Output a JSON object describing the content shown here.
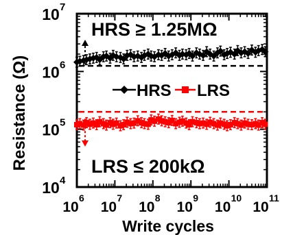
{
  "chart_data": {
    "type": "scatter",
    "title": "",
    "xlabel": "Write cycles",
    "ylabel": "Resistance (Ω)",
    "xscale": "log",
    "yscale": "log",
    "xlim": [
      1000000,
      100000000000
    ],
    "ylim": [
      10000,
      10000000
    ],
    "x_ticks": [
      {
        "base": "10",
        "exp": "6",
        "value": 1000000
      },
      {
        "base": "10",
        "exp": "7",
        "value": 10000000
      },
      {
        "base": "10",
        "exp": "8",
        "value": 100000000
      },
      {
        "base": "10",
        "exp": "9",
        "value": 1000000000
      },
      {
        "base": "10",
        "exp": "10",
        "value": 10000000000
      },
      {
        "base": "10",
        "exp": "11",
        "value": 100000000000
      }
    ],
    "y_ticks": [
      {
        "base": "10",
        "exp": "4",
        "value": 10000
      },
      {
        "base": "10",
        "exp": "5",
        "value": 100000
      },
      {
        "base": "10",
        "exp": "6",
        "value": 1000000
      },
      {
        "base": "10",
        "exp": "7",
        "value": 10000000
      }
    ],
    "legend": {
      "position": "center",
      "entries": [
        {
          "name": "HRS",
          "color": "#000000",
          "marker": "diamond"
        },
        {
          "name": "LRS",
          "color": "#ff0000",
          "marker": "square"
        }
      ]
    },
    "annotations": {
      "hrs_label": "HRS ≥ 1.25MΩ",
      "lrs_label": "LRS ≤ 200kΩ"
    },
    "thresholds": [
      {
        "series": "HRS",
        "value": 1250000,
        "color": "#000000",
        "style": "dashed"
      },
      {
        "series": "LRS",
        "value": 200000,
        "color": "#ff0000",
        "style": "dashed"
      }
    ],
    "series": [
      {
        "name": "HRS",
        "color": "#000000",
        "marker": "diamond",
        "x": [
          1000000,
          1200000,
          1500000,
          1800000,
          2200000,
          2700000,
          3300000,
          4000000,
          5000000,
          6000000,
          7500000,
          9000000,
          11000000,
          14000000,
          17000000,
          21000000,
          26000000,
          32000000,
          40000000,
          50000000,
          60000000,
          75000000,
          90000000,
          110000000,
          140000000,
          170000000,
          210000000,
          260000000,
          320000000,
          400000000,
          500000000,
          600000000,
          750000000,
          900000000,
          1100000000,
          1400000000,
          1700000000,
          2100000000,
          2600000000,
          3200000000,
          4000000000,
          5000000000,
          6000000000,
          7500000000,
          9000000000,
          11000000000,
          14000000000,
          17000000000,
          21000000000,
          26000000000,
          32000000000,
          40000000000,
          50000000000,
          60000000000,
          75000000000,
          90000000000
        ],
        "y": [
          1450000,
          1500000,
          1550000,
          1600000,
          1650000,
          1700000,
          1750000,
          1600000,
          1800000,
          1850000,
          1700000,
          1900000,
          1800000,
          1750000,
          1650000,
          1900000,
          1950000,
          1800000,
          1850000,
          1750000,
          1900000,
          2000000,
          1850000,
          1800000,
          1950000,
          1900000,
          2050000,
          1850000,
          1950000,
          2100000,
          1900000,
          2000000,
          1950000,
          2050000,
          1850000,
          2100000,
          2000000,
          1900000,
          2200000,
          2000000,
          1850000,
          2100000,
          2250000,
          1950000,
          2050000,
          2150000,
          2000000,
          2300000,
          2100000,
          2200000,
          2050000,
          2350000,
          2150000,
          2300000,
          2400000,
          2200000
        ]
      },
      {
        "name": "LRS",
        "color": "#ff0000",
        "marker": "square",
        "x": [
          1000000,
          1200000,
          1500000,
          1800000,
          2200000,
          2700000,
          3300000,
          4000000,
          5000000,
          6000000,
          7500000,
          9000000,
          11000000,
          14000000,
          17000000,
          21000000,
          26000000,
          32000000,
          40000000,
          50000000,
          60000000,
          75000000,
          90000000,
          110000000,
          140000000,
          170000000,
          210000000,
          260000000,
          320000000,
          400000000,
          500000000,
          600000000,
          750000000,
          900000000,
          1100000000,
          1400000000,
          1700000000,
          2100000000,
          2600000000,
          3200000000,
          4000000000,
          5000000000,
          6000000000,
          7500000000,
          9000000000,
          11000000000,
          14000000000,
          17000000000,
          21000000000,
          26000000000,
          32000000000,
          40000000000,
          50000000000,
          60000000000,
          75000000000,
          90000000000
        ],
        "y": [
          120000,
          125000,
          118000,
          130000,
          122000,
          128000,
          120000,
          135000,
          125000,
          118000,
          130000,
          122000,
          128000,
          115000,
          120000,
          132000,
          125000,
          128000,
          140000,
          130000,
          125000,
          122000,
          145000,
          138000,
          150000,
          140000,
          135000,
          130000,
          142000,
          125000,
          132000,
          138000,
          128000,
          120000,
          135000,
          130000,
          125000,
          128000,
          122000,
          132000,
          125000,
          118000,
          128000,
          122000,
          115000,
          120000,
          130000,
          125000,
          118000,
          128000,
          122000,
          120000,
          125000,
          118000,
          130000,
          122000
        ]
      }
    ]
  }
}
